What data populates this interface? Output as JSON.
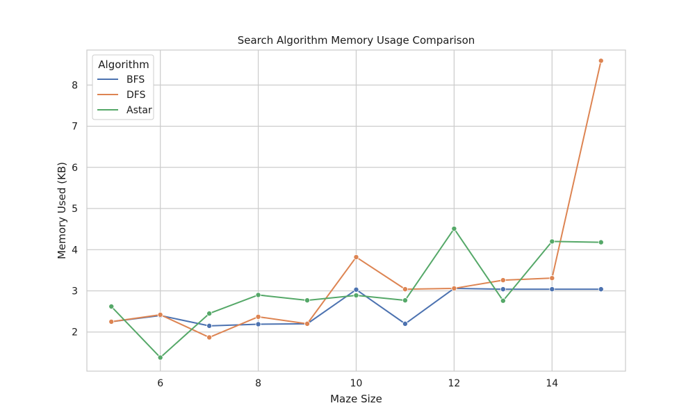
{
  "chart_data": {
    "type": "line",
    "title": "Search Algorithm Memory Usage Comparison",
    "xlabel": "Maze Size",
    "ylabel": "Memory Used (KB)",
    "x": [
      5,
      6,
      7,
      8,
      9,
      10,
      11,
      12,
      13,
      14,
      15
    ],
    "xlim": [
      4.5,
      15.5
    ],
    "ylim": [
      1.05,
      8.85
    ],
    "xticks": [
      6,
      8,
      10,
      12,
      14
    ],
    "yticks": [
      2,
      3,
      4,
      5,
      6,
      7,
      8
    ],
    "grid": true,
    "legend": {
      "title": "Algorithm",
      "placement": "top-left"
    },
    "series": [
      {
        "name": "BFS",
        "color": "#4c72b0",
        "values": [
          2.25,
          2.4,
          2.15,
          2.19,
          2.2,
          3.03,
          2.2,
          3.06,
          3.04,
          3.04,
          3.04
        ]
      },
      {
        "name": "DFS",
        "color": "#dd8452",
        "values": [
          2.25,
          2.42,
          1.87,
          2.37,
          2.2,
          3.82,
          3.04,
          3.06,
          3.26,
          3.31,
          8.59
        ]
      },
      {
        "name": "Astar",
        "color": "#55a868",
        "values": [
          2.62,
          1.38,
          2.45,
          2.9,
          2.77,
          2.89,
          2.77,
          4.51,
          2.76,
          4.2,
          4.18
        ]
      }
    ]
  }
}
